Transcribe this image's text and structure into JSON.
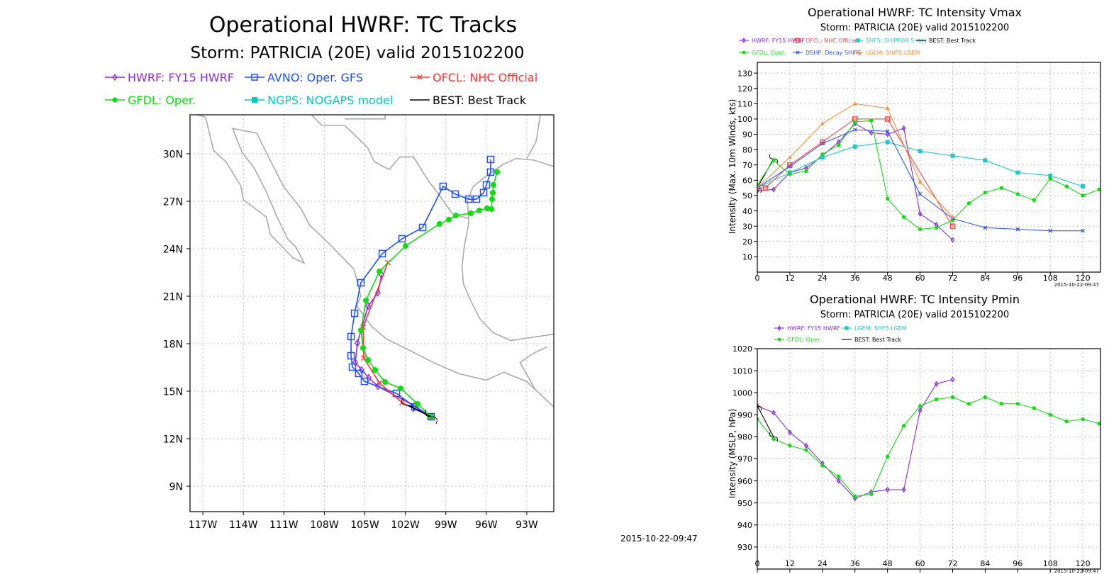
{
  "timestamp": "2015-10-22-09:47",
  "chart_data": [
    {
      "type": "line",
      "title": "Operational HWRF: TC Tracks",
      "subtitle": "Storm: PATRICIA (20E) valid 2015102200",
      "xlim": [
        -117.95,
        -91.0
      ],
      "ylim": [
        7.39,
        32.46
      ],
      "grid": true,
      "x_ticks": [
        -117,
        -114,
        -111,
        -108,
        -105,
        -102,
        -99,
        -96,
        -93
      ],
      "x_tick_labels": [
        "117W",
        "114W",
        "111W",
        "108W",
        "105W",
        "102W",
        "99W",
        "96W",
        "93W"
      ],
      "y_ticks": [
        9,
        12,
        15,
        18,
        21,
        24,
        27,
        30
      ],
      "y_tick_labels": [
        "9N",
        "12N",
        "15N",
        "18N",
        "21N",
        "24N",
        "27N",
        "30N"
      ],
      "legend": [
        "HWRF: FY15 HWRF",
        "AVNO: Oper. GFS",
        "OFCL: NHC Official",
        "GFDL: Oper.",
        "NGPS: NOGAPS model",
        "BEST: Best Track"
      ],
      "series": [
        {
          "name": "HWRF: FY15 HWRF",
          "color": "#8a2be2",
          "marker": "diamond-open",
          "points": [
            [
              -100.09,
              13.39
            ],
            [
              -101.3,
              14.06
            ],
            [
              -104.03,
              15.31
            ],
            [
              -104.71,
              15.85
            ],
            [
              -105.24,
              16.34
            ],
            [
              -105.71,
              16.83
            ],
            [
              -105.55,
              18.04
            ],
            [
              -104.76,
              20.37
            ],
            [
              -104.03,
              21.22
            ],
            [
              -103.76,
              22.34
            ]
          ]
        },
        {
          "name": "AVNO: Oper. GFS",
          "color": "#1f4fff",
          "marker": "square-open",
          "points": [
            [
              -100.09,
              13.39
            ],
            [
              -101.3,
              14.01
            ],
            [
              -102.66,
              14.86
            ],
            [
              -105.03,
              15.62
            ],
            [
              -105.45,
              16.12
            ],
            [
              -105.92,
              16.52
            ],
            [
              -106.02,
              17.24
            ],
            [
              -106.02,
              18.45
            ],
            [
              -105.76,
              19.92
            ],
            [
              -105.29,
              21.85
            ],
            [
              -103.71,
              23.69
            ],
            [
              -102.24,
              24.63
            ],
            [
              -100.72,
              25.34
            ],
            [
              -99.2,
              27.94
            ],
            [
              -98.3,
              27.45
            ],
            [
              -97.3,
              27.13
            ],
            [
              -96.73,
              27.13
            ],
            [
              -96.2,
              27.54
            ],
            [
              -95.99,
              28.03
            ],
            [
              -95.68,
              28.84
            ],
            [
              -95.68,
              29.64
            ]
          ]
        },
        {
          "name": "OFCL: NHC Official",
          "color": "#ff3333",
          "marker": "x",
          "points": [
            [
              -100.09,
              13.39
            ],
            [
              -102.24,
              14.28
            ],
            [
              -103.92,
              15.53
            ],
            [
              -105.08,
              17.1
            ],
            [
              -105.13,
              19.03
            ],
            [
              -103.29,
              23.13
            ]
          ]
        },
        {
          "name": "GFDL: Oper.",
          "color": "#11dd11",
          "marker": "circle",
          "points": [
            [
              -100.09,
              13.39
            ],
            [
              -101.09,
              14.19
            ],
            [
              -102.35,
              15.18
            ],
            [
              -103.5,
              15.58
            ],
            [
              -104.24,
              16.34
            ],
            [
              -104.76,
              16.97
            ],
            [
              -105.13,
              17.73
            ],
            [
              -105.29,
              18.85
            ],
            [
              -104.92,
              20.73
            ],
            [
              -103.92,
              22.57
            ],
            [
              -101.98,
              24.18
            ],
            [
              -99.46,
              25.57
            ],
            [
              -98.78,
              25.84
            ],
            [
              -98.25,
              26.1
            ],
            [
              -97.15,
              26.24
            ],
            [
              -96.52,
              26.42
            ],
            [
              -95.94,
              26.55
            ],
            [
              -95.62,
              26.51
            ],
            [
              -95.57,
              27.13
            ],
            [
              -95.52,
              27.54
            ],
            [
              -95.47,
              28.03
            ],
            [
              -95.2,
              28.84
            ]
          ]
        },
        {
          "name": "NGPS: NOGAPS model",
          "color": "#00c8c8",
          "marker": "square-filled",
          "points": []
        },
        {
          "name": "BEST: Best Track",
          "color": "#000000",
          "marker": "hurricane",
          "points": [
            [
              -100.09,
              13.39
            ],
            [
              -101.82,
              14.1
            ]
          ]
        }
      ]
    },
    {
      "type": "line",
      "title": "Operational HWRF: TC Intensity Vmax",
      "subtitle": "Storm: PATRICIA (20E) valid 2015102200",
      "ylabel": "Intensity (Max. 10m Winds, kts)",
      "xlim": [
        0,
        126.5
      ],
      "ylim": [
        0,
        137
      ],
      "grid": true,
      "x_ticks": [
        0,
        12,
        24,
        36,
        48,
        60,
        72,
        84,
        96,
        108,
        120
      ],
      "y_ticks": [
        10,
        20,
        30,
        40,
        50,
        60,
        70,
        80,
        90,
        100,
        110,
        120,
        130
      ],
      "timestamp": "2015-10-22-09:47",
      "legend": [
        "HWRF: FY15 HWRF",
        "OFCL: NHC Official",
        "SHF5: SHIPFOR 5-day",
        "BEST: Best Track",
        "GFDL: Oper.",
        "DSHP: Decay SHIPS",
        "LGEM: SHIPS LGEM"
      ],
      "series": [
        {
          "name": "HWRF: FY15 HWRF",
          "color": "#8a2be2",
          "marker": "diamond-open",
          "points": [
            [
              0,
              53
            ],
            [
              6,
              54
            ],
            [
              12,
              65
            ],
            [
              18,
              68
            ],
            [
              24,
              76
            ],
            [
              30,
              85
            ],
            [
              36,
              97
            ],
            [
              42,
              91
            ],
            [
              48,
              90
            ],
            [
              54,
              94
            ],
            [
              60,
              38
            ],
            [
              66,
              31
            ],
            [
              72,
              21
            ]
          ]
        },
        {
          "name": "OFCL: NHC Official",
          "color": "#ff4444",
          "marker": "square-open",
          "points": [
            [
              0,
              55
            ],
            [
              3,
              55
            ],
            [
              12,
              70
            ],
            [
              24,
              85
            ],
            [
              36,
              100
            ],
            [
              48,
              100
            ],
            [
              72,
              30
            ]
          ]
        },
        {
          "name": "SHF5: SHIPFOR 5-day",
          "color": "#20c8d0",
          "marker": "square-filled",
          "points": [
            [
              0,
              55
            ],
            [
              12,
              65
            ],
            [
              24,
              75
            ],
            [
              36,
              82
            ],
            [
              48,
              85
            ],
            [
              60,
              79
            ],
            [
              72,
              76
            ],
            [
              84,
              73
            ],
            [
              96,
              65
            ],
            [
              108,
              63
            ],
            [
              120,
              56
            ]
          ]
        },
        {
          "name": "BEST: Best Track",
          "color": "#000000",
          "marker": "hurricane",
          "points": [
            [
              0,
              55
            ],
            [
              6,
              74
            ]
          ]
        },
        {
          "name": "GFDL: Oper.",
          "color": "#11dd11",
          "marker": "circle",
          "points": [
            [
              0,
              57
            ],
            [
              6,
              73
            ],
            [
              12,
              64
            ],
            [
              18,
              66
            ],
            [
              24,
              77
            ],
            [
              30,
              83
            ],
            [
              36,
              98
            ],
            [
              42,
              99
            ],
            [
              48,
              48
            ],
            [
              54,
              36
            ],
            [
              60,
              28
            ],
            [
              66,
              29
            ],
            [
              72,
              34
            ],
            [
              78,
              45
            ],
            [
              84,
              52
            ],
            [
              90,
              55
            ],
            [
              96,
              51
            ],
            [
              102,
              47
            ],
            [
              108,
              61
            ],
            [
              114,
              56
            ],
            [
              120,
              50
            ],
            [
              126,
              54
            ]
          ]
        },
        {
          "name": "DSHP: Decay SHIPS",
          "color": "#3355ff",
          "marker": "x",
          "points": [
            [
              0,
              55
            ],
            [
              12,
              69
            ],
            [
              24,
              84
            ],
            [
              36,
              93
            ],
            [
              48,
              92
            ],
            [
              60,
              51
            ],
            [
              72,
              35
            ],
            [
              84,
              29
            ],
            [
              96,
              28
            ],
            [
              108,
              27
            ],
            [
              120,
              27
            ]
          ]
        },
        {
          "name": "LGEM: SHIPS LGEM",
          "color": "#ff8c33",
          "marker": "triangle",
          "points": [
            [
              0,
              55
            ],
            [
              12,
              75
            ],
            [
              24,
              97
            ],
            [
              36,
              110
            ],
            [
              48,
              107
            ],
            [
              60,
              59
            ],
            [
              72,
              36
            ]
          ]
        }
      ]
    },
    {
      "type": "line",
      "title": "Operational HWRF: TC Intensity Pmin",
      "subtitle": "Storm: PATRICIA (20E) valid 2015102200",
      "ylabel": "Intensity (MSLP, hPa)",
      "xlim": [
        0,
        126.5
      ],
      "ylim": [
        920,
        1020
      ],
      "grid": true,
      "x_ticks": [
        0,
        12,
        24,
        36,
        48,
        60,
        72,
        84,
        96,
        108,
        120
      ],
      "y_ticks": [
        930,
        940,
        950,
        960,
        970,
        980,
        990,
        1000,
        1010,
        1020
      ],
      "timestamp": "2015-10-22-09:47",
      "legend": [
        "HWRF: FY15 HWRF",
        "LGEM: SHF5 LGEM",
        "GFDL: Oper.",
        "BEST: Best Track"
      ],
      "series": [
        {
          "name": "HWRF: FY15 HWRF",
          "color": "#8a2be2",
          "marker": "diamond-open",
          "points": [
            [
              0,
              994
            ],
            [
              6,
              991
            ],
            [
              12,
              982
            ],
            [
              18,
              976
            ],
            [
              24,
              968
            ],
            [
              30,
              960
            ],
            [
              36,
              952
            ],
            [
              42,
              955
            ],
            [
              48,
              956
            ],
            [
              54,
              956
            ],
            [
              60,
              992
            ],
            [
              66,
              1004
            ],
            [
              72,
              1006
            ]
          ]
        },
        {
          "name": "LGEM: SHF5 LGEM",
          "color": "#20c8d0",
          "marker": "square-filled",
          "points": []
        },
        {
          "name": "GFDL: Oper.",
          "color": "#11dd11",
          "marker": "circle",
          "points": [
            [
              0,
              988
            ],
            [
              6,
              979
            ],
            [
              12,
              976
            ],
            [
              18,
              974
            ],
            [
              24,
              967
            ],
            [
              30,
              962
            ],
            [
              36,
              953
            ],
            [
              42,
              954
            ],
            [
              48,
              971
            ],
            [
              54,
              985
            ],
            [
              60,
              994
            ],
            [
              66,
              997
            ],
            [
              72,
              998
            ],
            [
              78,
              995
            ],
            [
              84,
              998
            ],
            [
              90,
              995
            ],
            [
              96,
              995
            ],
            [
              102,
              993
            ],
            [
              108,
              990
            ],
            [
              114,
              987
            ],
            [
              120,
              988
            ],
            [
              126,
              986
            ]
          ]
        },
        {
          "name": "BEST: Best Track",
          "color": "#000000",
          "marker": "hurricane",
          "points": [
            [
              0,
              994
            ],
            [
              6,
              980
            ]
          ]
        }
      ]
    }
  ]
}
